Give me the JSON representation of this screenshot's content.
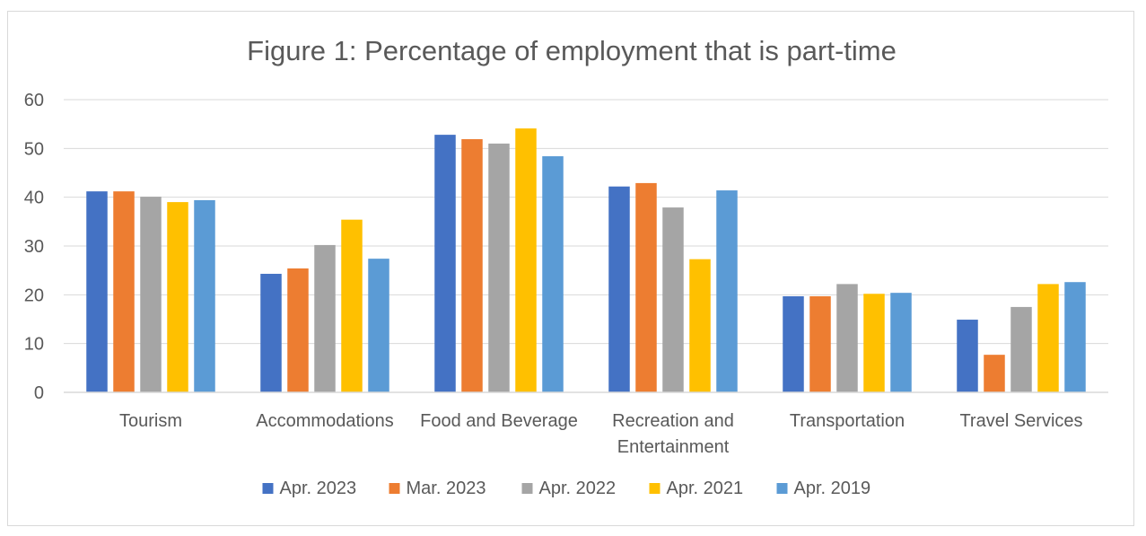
{
  "chart_data": {
    "type": "bar",
    "title": "Figure 1: Percentage of employment that is part-time",
    "xlabel": "",
    "ylabel": "",
    "ylim": [
      0,
      60
    ],
    "yticks": [
      "0",
      "10",
      "20",
      "30",
      "40",
      "50",
      "60"
    ],
    "grid": true,
    "legend_position": "bottom",
    "categories": [
      [
        "Tourism"
      ],
      [
        "Accommodations"
      ],
      [
        "Food and Beverage"
      ],
      [
        "Recreation and",
        "Entertainment"
      ],
      [
        "Transportation"
      ],
      [
        "Travel Services"
      ]
    ],
    "series": [
      {
        "name": "Apr. 2023",
        "color": "#4472C4",
        "values": [
          41.2,
          24.3,
          52.8,
          42.2,
          19.7,
          14.9
        ]
      },
      {
        "name": "Mar. 2023",
        "color": "#ED7D31",
        "values": [
          41.2,
          25.4,
          51.9,
          42.9,
          19.7,
          7.7
        ]
      },
      {
        "name": "Apr. 2022",
        "color": "#A5A5A5",
        "values": [
          40.1,
          30.2,
          51.0,
          37.9,
          22.2,
          17.5
        ]
      },
      {
        "name": "Apr. 2021",
        "color": "#FFC000",
        "values": [
          39.0,
          35.4,
          54.1,
          27.3,
          20.2,
          22.2
        ]
      },
      {
        "name": "Apr. 2019",
        "color": "#5B9BD5",
        "values": [
          39.4,
          27.4,
          48.4,
          41.4,
          20.4,
          22.6
        ]
      }
    ]
  }
}
